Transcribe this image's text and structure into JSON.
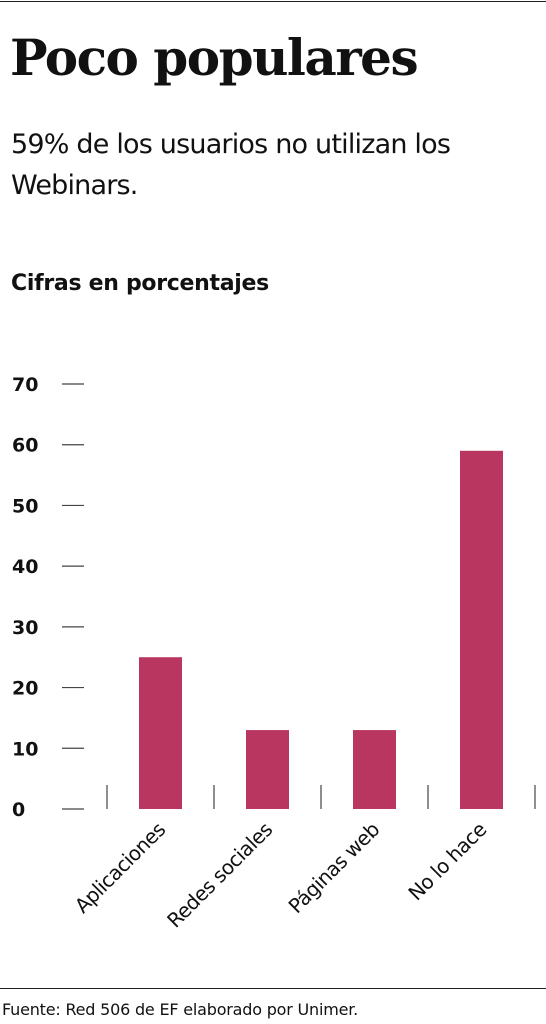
{
  "header": {
    "title": "Poco populares",
    "subtitle": "59% de los usuarios no utilizan los Webinars.",
    "units_label": "Cifras en porcentajes"
  },
  "footer": {
    "source": "Fuente: Red 506 de EF elaborado por Unimer."
  },
  "colors": {
    "bar": "#b8365f",
    "axis": "#444444",
    "text": "#111111"
  },
  "chart_data": {
    "type": "bar",
    "title": "",
    "xlabel": "",
    "ylabel": "",
    "categories": [
      "Aplicaciones",
      "Redes sociales",
      "Páginas web",
      "No lo hace"
    ],
    "values": [
      25,
      13,
      13,
      59
    ],
    "ylim": [
      0,
      70
    ],
    "yticks": [
      0,
      10,
      20,
      30,
      40,
      50,
      60,
      70
    ],
    "grid": false,
    "legend": "none"
  }
}
